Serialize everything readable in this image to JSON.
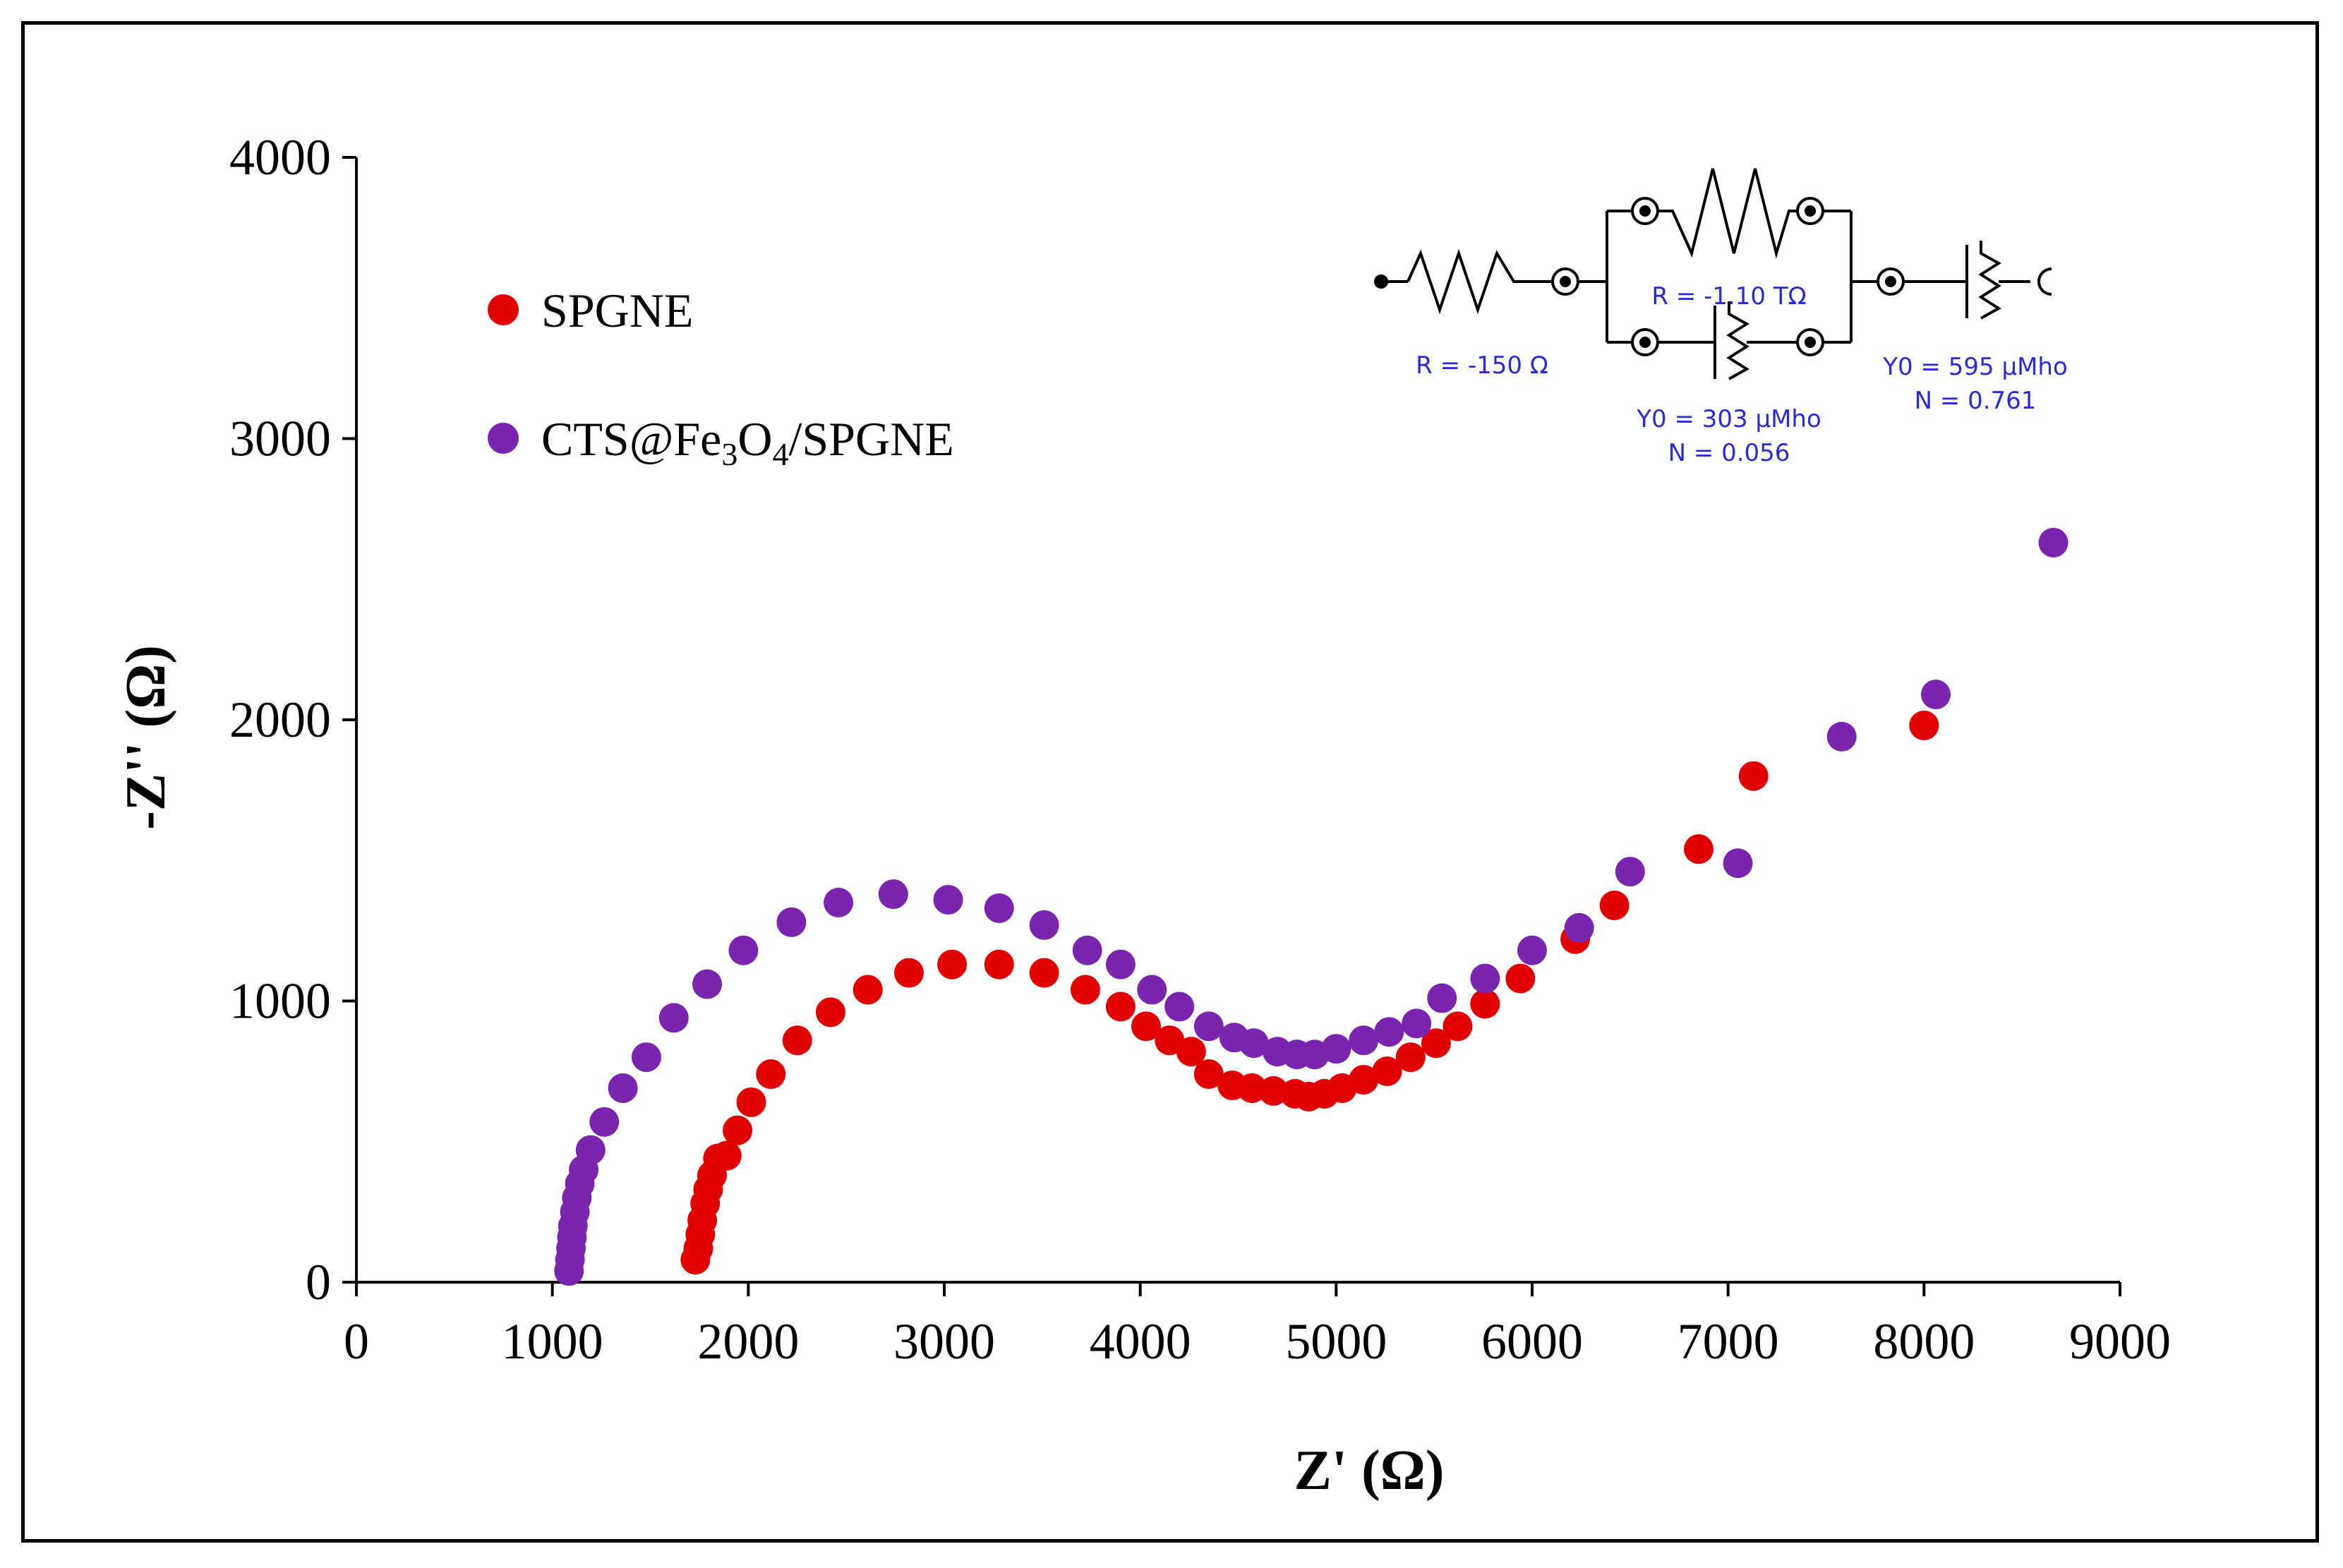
{
  "chart_data": {
    "type": "scatter",
    "title": "",
    "xlabel": "Z' (Ω)",
    "ylabel": "-Z'' (Ω)",
    "xlim": [
      0,
      9000
    ],
    "ylim": [
      0,
      4000
    ],
    "x_ticks": [
      "0",
      "1000",
      "2000",
      "3000",
      "4000",
      "5000",
      "6000",
      "7000",
      "8000",
      "9000"
    ],
    "y_ticks": [
      "0",
      "1000",
      "2000",
      "3000",
      "4000"
    ],
    "grid": false,
    "legend_position": "top-left",
    "series": [
      {
        "name": "SPGNE",
        "color": "#e00000",
        "points": [
          [
            1730,
            80
          ],
          [
            1745,
            120
          ],
          [
            1755,
            170
          ],
          [
            1765,
            220
          ],
          [
            1780,
            280
          ],
          [
            1795,
            330
          ],
          [
            1815,
            380
          ],
          [
            1845,
            440
          ],
          [
            1890,
            450
          ],
          [
            1945,
            540
          ],
          [
            2015,
            640
          ],
          [
            2115,
            740
          ],
          [
            2250,
            860
          ],
          [
            2420,
            960
          ],
          [
            2610,
            1040
          ],
          [
            2820,
            1100
          ],
          [
            3040,
            1130
          ],
          [
            3280,
            1130
          ],
          [
            3510,
            1100
          ],
          [
            3720,
            1040
          ],
          [
            3900,
            980
          ],
          [
            4030,
            910
          ],
          [
            4150,
            860
          ],
          [
            4260,
            820
          ],
          [
            4350,
            740
          ],
          [
            4470,
            700
          ],
          [
            4570,
            690
          ],
          [
            4680,
            680
          ],
          [
            4790,
            670
          ],
          [
            4860,
            660
          ],
          [
            4940,
            670
          ],
          [
            5030,
            690
          ],
          [
            5140,
            720
          ],
          [
            5260,
            750
          ],
          [
            5380,
            800
          ],
          [
            5510,
            850
          ],
          [
            5620,
            910
          ],
          [
            5760,
            990
          ],
          [
            5940,
            1080
          ],
          [
            6220,
            1220
          ],
          [
            6420,
            1340
          ],
          [
            6850,
            1540
          ],
          [
            7130,
            1800
          ],
          [
            8000,
            1980
          ]
        ]
      },
      {
        "name": "CTS@Fe3O4/SPGNE",
        "name_parts": [
          "CTS@Fe",
          "3",
          "O",
          "4",
          "/SPGNE"
        ],
        "color": "#7a25b0",
        "points": [
          [
            1085,
            40
          ],
          [
            1090,
            80
          ],
          [
            1095,
            120
          ],
          [
            1100,
            160
          ],
          [
            1105,
            200
          ],
          [
            1115,
            250
          ],
          [
            1125,
            300
          ],
          [
            1140,
            350
          ],
          [
            1160,
            400
          ],
          [
            1195,
            470
          ],
          [
            1265,
            570
          ],
          [
            1360,
            690
          ],
          [
            1480,
            800
          ],
          [
            1620,
            940
          ],
          [
            1790,
            1060
          ],
          [
            1975,
            1180
          ],
          [
            2220,
            1280
          ],
          [
            2460,
            1350
          ],
          [
            2740,
            1380
          ],
          [
            3020,
            1360
          ],
          [
            3280,
            1330
          ],
          [
            3510,
            1270
          ],
          [
            3730,
            1180
          ],
          [
            3900,
            1130
          ],
          [
            4060,
            1040
          ],
          [
            4200,
            980
          ],
          [
            4350,
            910
          ],
          [
            4480,
            870
          ],
          [
            4580,
            850
          ],
          [
            4700,
            820
          ],
          [
            4800,
            810
          ],
          [
            4890,
            810
          ],
          [
            5000,
            830
          ],
          [
            5140,
            860
          ],
          [
            5270,
            890
          ],
          [
            5410,
            920
          ],
          [
            5540,
            1010
          ],
          [
            5760,
            1080
          ],
          [
            6000,
            1180
          ],
          [
            6240,
            1260
          ],
          [
            6500,
            1460
          ],
          [
            7050,
            1490
          ],
          [
            7580,
            1940
          ],
          [
            8060,
            2090
          ],
          [
            8660,
            2630
          ]
        ]
      }
    ]
  },
  "circuit": {
    "r1_label": "R = -150 Ω",
    "r2_label": "R = -1.10 TΩ",
    "cpe1_y0": "Y0 = 303 µMho",
    "cpe1_n": "N = 0.056",
    "cpe2_y0": "Y0 = 595 µMho",
    "cpe2_n": "N = 0.761",
    "label_color": "#2a2ad8"
  }
}
